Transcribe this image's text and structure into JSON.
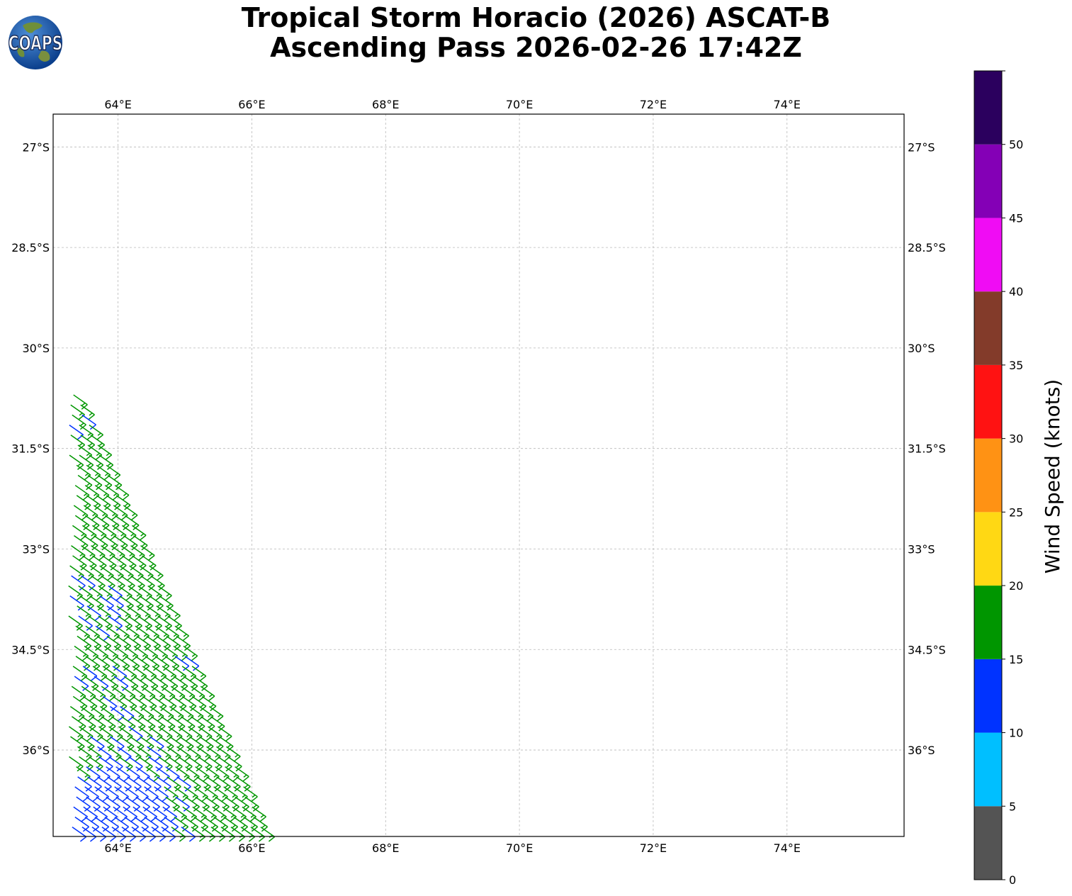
{
  "header": {
    "title_line1": "Tropical Storm Horacio (2026) ASCAT-B",
    "title_line2": "Ascending Pass 2026-02-26 17:42Z",
    "logo_text": "COAPS"
  },
  "chart_data": {
    "type": "scatter",
    "plot": "wind barbs",
    "x_axis": {
      "label": "",
      "range": [
        63.03,
        75.75
      ],
      "ticks": [
        64,
        66,
        68,
        70,
        72,
        74
      ],
      "tick_labels": [
        "64°E",
        "66°E",
        "68°E",
        "70°E",
        "72°E",
        "74°E"
      ]
    },
    "y_axis": {
      "label": "",
      "range": [
        -37.29,
        -26.51
      ],
      "ticks": [
        -27,
        -28.5,
        -30,
        -31.5,
        -33,
        -34.5,
        -36
      ],
      "tick_labels": [
        "27°S",
        "28.5°S",
        "30°S",
        "31.5°S",
        "33°S",
        "34.5°S",
        "36°S"
      ]
    },
    "grid": true,
    "colorbar": {
      "title": "Wind Speed (knots)",
      "bounds": [
        0,
        5,
        10,
        15,
        20,
        25,
        30,
        35,
        40,
        45,
        50,
        55
      ],
      "tick_labels": [
        "0",
        "5",
        "10",
        "15",
        "20",
        "25",
        "30",
        "35",
        "40",
        "45",
        "50"
      ],
      "colors": [
        "#545454",
        "#00bfff",
        "#0033ff",
        "#009600",
        "#ffd814",
        "#ff9214",
        "#ff1212",
        "#833b2a",
        "#f00cf4",
        "#8400b6",
        "#2b005e"
      ]
    },
    "swath": {
      "west_edge_lon": 63.03,
      "lat_top": -30.62,
      "lat_bottom": -37.29,
      "east_edge_top_lon": 63.3,
      "east_edge_bottom_lon": 66.15,
      "wind_direction_to_deg": 305,
      "rows": [
        {
          "lat": -30.7,
          "speeds": [
            17,
            17
          ]
        },
        {
          "lat": -30.85,
          "speeds": [
            17,
            16
          ]
        },
        {
          "lat": -31.0,
          "speeds": [
            18,
            17,
            13
          ]
        },
        {
          "lat": -31.15,
          "speeds": [
            13,
            15,
            17
          ]
        },
        {
          "lat": -31.3,
          "speeds": [
            12,
            16,
            17,
            18
          ]
        },
        {
          "lat": -31.45,
          "speeds": [
            17,
            17,
            18,
            17
          ]
        },
        {
          "lat": -31.6,
          "speeds": [
            16,
            17,
            17,
            18
          ]
        },
        {
          "lat": -31.75,
          "speeds": [
            17,
            18,
            17,
            16,
            17
          ]
        },
        {
          "lat": -31.9,
          "speeds": [
            16,
            17,
            18,
            17,
            17
          ]
        },
        {
          "lat": -32.05,
          "speeds": [
            17,
            16,
            17,
            18,
            17,
            16
          ]
        },
        {
          "lat": -32.2,
          "speeds": [
            18,
            17,
            17,
            16,
            17,
            17
          ]
        },
        {
          "lat": -32.35,
          "speeds": [
            16,
            17,
            18,
            17,
            16,
            17,
            18
          ]
        },
        {
          "lat": -32.5,
          "speeds": [
            17,
            18,
            17,
            17,
            18,
            16,
            17
          ]
        },
        {
          "lat": -32.65,
          "speeds": [
            17,
            16,
            17,
            18,
            17,
            17,
            18,
            16
          ]
        },
        {
          "lat": -32.8,
          "speeds": [
            16,
            17,
            18,
            17,
            16,
            17,
            17,
            18
          ]
        },
        {
          "lat": -32.95,
          "speeds": [
            17,
            17,
            16,
            17,
            18,
            17,
            16,
            17,
            17
          ]
        },
        {
          "lat": -33.1,
          "speeds": [
            18,
            17,
            17,
            16,
            17,
            18,
            17,
            17,
            16
          ]
        },
        {
          "lat": -33.25,
          "speeds": [
            17,
            16,
            17,
            17,
            18,
            17,
            16,
            17,
            17,
            18
          ]
        },
        {
          "lat": -33.4,
          "speeds": [
            14,
            13,
            14,
            17,
            18,
            17,
            17,
            16,
            17,
            17
          ]
        },
        {
          "lat": -33.55,
          "speeds": [
            17,
            17,
            16,
            17,
            18,
            14,
            17,
            17,
            16,
            17,
            18
          ]
        },
        {
          "lat": -33.7,
          "speeds": [
            16,
            13,
            17,
            17,
            14,
            13,
            17,
            16,
            17,
            18,
            17
          ]
        },
        {
          "lat": -33.85,
          "speeds": [
            17,
            14,
            16,
            13,
            17,
            14,
            17,
            17,
            18,
            16,
            17,
            17
          ]
        },
        {
          "lat": -34.0,
          "speeds": [
            13,
            17,
            14,
            17,
            16,
            13,
            17,
            18,
            17,
            17,
            16,
            17
          ]
        },
        {
          "lat": -34.15,
          "speeds": [
            14,
            17,
            16,
            17,
            14,
            17,
            16,
            17,
            17,
            18,
            17,
            16,
            17
          ]
        },
        {
          "lat": -34.3,
          "speeds": [
            13,
            17,
            17,
            16,
            17,
            17,
            18,
            17,
            16,
            17,
            17,
            18,
            17
          ]
        },
        {
          "lat": -34.45,
          "speeds": [
            17,
            16,
            17,
            17,
            18,
            17,
            17,
            16,
            17,
            18,
            17,
            17,
            16,
            17
          ]
        },
        {
          "lat": -34.6,
          "speeds": [
            16,
            17,
            18,
            17,
            17,
            16,
            17,
            17,
            18,
            17,
            16,
            17,
            13,
            14
          ]
        },
        {
          "lat": -34.75,
          "speeds": [
            17,
            17,
            16,
            13,
            17,
            18,
            14,
            17,
            16,
            17,
            17,
            18,
            17,
            16,
            17
          ]
        },
        {
          "lat": -34.9,
          "speeds": [
            14,
            17,
            13,
            17,
            14,
            17,
            13,
            16,
            17,
            18,
            17,
            17,
            16,
            17,
            18
          ]
        },
        {
          "lat": -35.05,
          "speeds": [
            17,
            16,
            17,
            17,
            16,
            17,
            17,
            18,
            17,
            16,
            17,
            17,
            18,
            17,
            16,
            17
          ]
        },
        {
          "lat": -35.2,
          "speeds": [
            16,
            17,
            18,
            17,
            17,
            13,
            17,
            16,
            17,
            17,
            18,
            17,
            16,
            17,
            17,
            18
          ]
        },
        {
          "lat": -35.35,
          "speeds": [
            13,
            14,
            17,
            16,
            17,
            17,
            14,
            13,
            17,
            18,
            17,
            16,
            17,
            17,
            18,
            17,
            16
          ]
        },
        {
          "lat": -35.5,
          "speeds": [
            14,
            13,
            17,
            17,
            16,
            17,
            17,
            18,
            17,
            16,
            17,
            17,
            18,
            17,
            16,
            17,
            17
          ]
        },
        {
          "lat": -35.65,
          "speeds": [
            17,
            17,
            16,
            17,
            18,
            17,
            17,
            16,
            13,
            17,
            18,
            17,
            16,
            17,
            17,
            18,
            17,
            16
          ]
        },
        {
          "lat": -35.8,
          "speeds": [
            17,
            16,
            17,
            18,
            13,
            17,
            14,
            17,
            16,
            17,
            13,
            17,
            17,
            18,
            17,
            16,
            17,
            17
          ]
        },
        {
          "lat": -35.95,
          "speeds": [
            16,
            17,
            18,
            17,
            16,
            14,
            17,
            13,
            17,
            17,
            14,
            16,
            17,
            17,
            18,
            17,
            17,
            16,
            17
          ]
        },
        {
          "lat": -36.1,
          "speeds": [
            17,
            17,
            16,
            17,
            17,
            13,
            14,
            17,
            13,
            17,
            14,
            17,
            16,
            17,
            18,
            17,
            17,
            16,
            17
          ]
        },
        {
          "lat": -36.25,
          "speeds": [
            14,
            13,
            14,
            17,
            13,
            14,
            13,
            14,
            13,
            14,
            17,
            13,
            14,
            17,
            16,
            17,
            17,
            18,
            17,
            17
          ]
        },
        {
          "lat": -36.4,
          "speeds": [
            13,
            14,
            13,
            14,
            14,
            13,
            14,
            13,
            14,
            13,
            14,
            13,
            17,
            14,
            17,
            17,
            16,
            17,
            17,
            18
          ]
        },
        {
          "lat": -36.55,
          "speeds": [
            14,
            13,
            14,
            13,
            14,
            14,
            13,
            14,
            13,
            14,
            13,
            14,
            17,
            17,
            16,
            17,
            17,
            18,
            17,
            17,
            16
          ]
        },
        {
          "lat": -36.7,
          "speeds": [
            13,
            14,
            13,
            14,
            13,
            14,
            14,
            13,
            14,
            13,
            14,
            13,
            17,
            14,
            17,
            17,
            16,
            17,
            18,
            17,
            17
          ]
        },
        {
          "lat": -36.85,
          "speeds": [
            14,
            13,
            14,
            13,
            14,
            13,
            14,
            14,
            13,
            14,
            13,
            14,
            13,
            17,
            17,
            16,
            17,
            17,
            18,
            17,
            17,
            16
          ]
        },
        {
          "lat": -37.0,
          "speeds": [
            13,
            14,
            13,
            14,
            13,
            14,
            13,
            14,
            14,
            13,
            14,
            13,
            14,
            17,
            17,
            16,
            17,
            18,
            17,
            17,
            16,
            17
          ]
        },
        {
          "lat": -37.15,
          "speeds": [
            14,
            13,
            14,
            13,
            14,
            13,
            14,
            13,
            14,
            14,
            13,
            14,
            13,
            17,
            14,
            17,
            16,
            17,
            17,
            18,
            17,
            17,
            16
          ]
        }
      ]
    }
  }
}
